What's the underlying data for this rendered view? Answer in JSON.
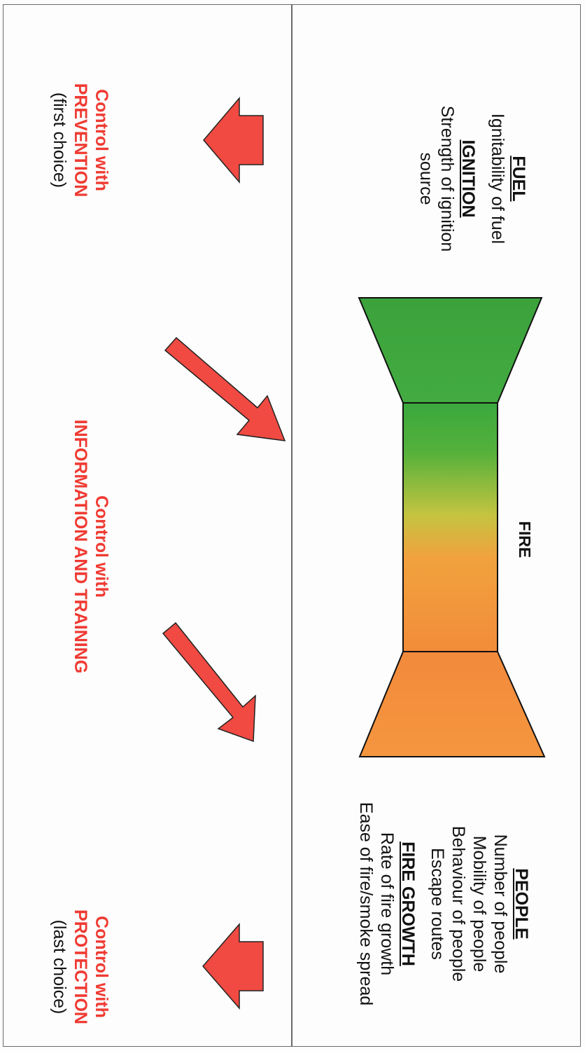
{
  "fuel": {
    "title": "FUEL",
    "lines": [
      "Ignitability of fuel"
    ]
  },
  "ignition": {
    "title": "IGNITION",
    "lines": [
      "Strength of ignition",
      "source"
    ]
  },
  "people": {
    "title": "PEOPLE",
    "lines": [
      "Number of people",
      "Mobility of people",
      "Behaviour of people",
      "Escape routes"
    ]
  },
  "fire_growth": {
    "title": "FIRE GROWTH",
    "lines": [
      "Rate of fire growth",
      "Ease of fire/smoke spread"
    ]
  },
  "fire_label": "FIRE",
  "control_prevention": {
    "line1": "Control with",
    "line2": "PREVENTION",
    "line3": "(first choice)"
  },
  "control_information": {
    "line1": "Control with",
    "line2": "INFORMATION AND TRAINING"
  },
  "control_protection": {
    "line1": "Control with",
    "line2": "PROTECTION",
    "line3": "(last choice)"
  },
  "colors": {
    "arrow_red": "#f04a42",
    "green": "#3daa3f",
    "orange": "#f28c3a",
    "border": "#6a6a6a"
  }
}
